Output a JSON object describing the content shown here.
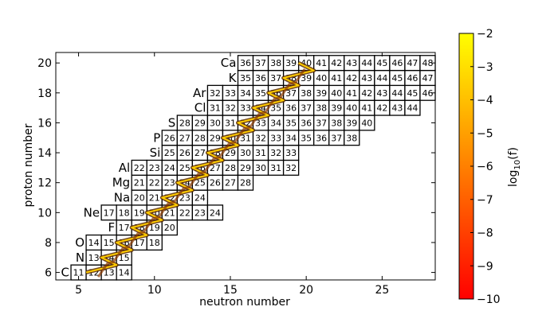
{
  "chart_data": {
    "type": "heatmap",
    "title": "",
    "xlabel": "neutron number",
    "ylabel": "proton number",
    "xlim": [
      3.5,
      28.5
    ],
    "ylim": [
      5.5,
      20.7
    ],
    "xticks": [
      5,
      10,
      15,
      20,
      25
    ],
    "yticks": [
      6,
      8,
      10,
      12,
      14,
      16,
      18,
      20
    ],
    "elements": [
      {
        "z": 6,
        "symbol": "C",
        "a_start": 11,
        "a_end": 14
      },
      {
        "z": 7,
        "symbol": "N",
        "a_start": 13,
        "a_end": 15
      },
      {
        "z": 8,
        "symbol": "O",
        "a_start": 14,
        "a_end": 18
      },
      {
        "z": 9,
        "symbol": "F",
        "a_start": 17,
        "a_end": 20
      },
      {
        "z": 10,
        "symbol": "Ne",
        "a_start": 17,
        "a_end": 24
      },
      {
        "z": 11,
        "symbol": "Na",
        "a_start": 20,
        "a_end": 24
      },
      {
        "z": 12,
        "symbol": "Mg",
        "a_start": 21,
        "a_end": 28
      },
      {
        "z": 13,
        "symbol": "Al",
        "a_start": 22,
        "a_end": 32
      },
      {
        "z": 14,
        "symbol": "Si",
        "a_start": 25,
        "a_end": 33
      },
      {
        "z": 15,
        "symbol": "P",
        "a_start": 26,
        "a_end": 38
      },
      {
        "z": 16,
        "symbol": "S",
        "a_start": 28,
        "a_end": 40
      },
      {
        "z": 17,
        "symbol": "Cl",
        "a_start": 31,
        "a_end": 44
      },
      {
        "z": 18,
        "symbol": "Ar",
        "a_start": 32,
        "a_end": 46
      },
      {
        "z": 19,
        "symbol": "K",
        "a_start": 35,
        "a_end": 47
      },
      {
        "z": 20,
        "symbol": "Ca",
        "a_start": 36,
        "a_end": 48
      }
    ],
    "colorbar": {
      "label": "log10(f)",
      "min": -10,
      "max": -2,
      "ticks": [
        -2,
        -3,
        -4,
        -5,
        -6,
        -7,
        -8,
        -9,
        -10
      ],
      "colors": [
        "#ff0000",
        "#ff8000",
        "#ffff00"
      ]
    }
  }
}
